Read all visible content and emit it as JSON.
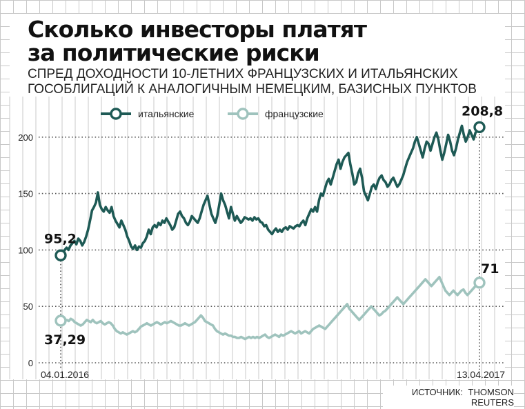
{
  "header": {
    "title_line1": "Сколько инвесторы платят",
    "title_line2": "за политические риски",
    "subtitle_line1": "СПРЕД ДОХОДНОСТИ 10-ЛЕТНИХ ФРАНЦУЗСКИХ И ИТАЛЬЯНСКИХ",
    "subtitle_line2": "ГОСОБЛИГАЦИЙ К АНАЛОГИЧНЫМ НЕМЕЦКИМ, БАЗИСНЫХ ПУНКТОВ"
  },
  "source": {
    "prefix": "ИСТОЧНИК:",
    "name": "THOMSON REUTERS"
  },
  "colors": {
    "italy": "#1e5a55",
    "france": "#9fc3bd",
    "grid": "#c8c8c8",
    "dotted": "#555555"
  },
  "chart_data": {
    "type": "line",
    "title": "Сколько инвесторы платят за политические риски",
    "subtitle": "СПРЕД ДОХОДНОСТИ 10-ЛЕТНИХ ФРАНЦУЗСКИХ И ИТАЛЬЯНСКИХ ГОСОБЛИГАЦИЙ К АНАЛОГИЧНЫМ НЕМЕЦКИМ, БАЗИСНЫХ ПУНКТОВ",
    "ylabel": "",
    "xlabel": "",
    "ylim": [
      0,
      225
    ],
    "yticks": [
      {
        "value": 0,
        "label": "0"
      },
      {
        "value": 50,
        "label": "50"
      },
      {
        "value": 100,
        "label": "100"
      },
      {
        "value": 150,
        "label": "150"
      },
      {
        "value": 200,
        "label": "200"
      }
    ],
    "x_start_label": "04.01.2016",
    "x_end_label": "13.04.2017",
    "grid": true,
    "legend_position": "top-left",
    "series": [
      {
        "name": "итальянские",
        "color": "#1e5a55",
        "start_label": "95,2",
        "end_label": "208,8",
        "values": [
          95.2,
          96,
          100,
          102,
          100,
          104,
          106,
          108,
          105,
          110,
          108,
          104,
          107,
          112,
          118,
          126,
          135,
          138,
          142,
          151,
          140,
          136,
          134,
          138,
          135,
          133,
          138,
          130,
          126,
          123,
          120,
          126,
          122,
          118,
          112,
          108,
          103,
          101,
          104,
          100,
          103,
          102,
          106,
          108,
          112,
          118,
          114,
          120,
          122,
          120,
          124,
          122,
          126,
          124,
          128,
          125,
          122,
          118,
          120,
          126,
          132,
          134,
          130,
          128,
          124,
          122,
          125,
          130,
          128,
          126,
          124,
          128,
          134,
          140,
          144,
          148,
          140,
          132,
          128,
          124,
          130,
          140,
          150,
          144,
          140,
          134,
          128,
          138,
          132,
          126,
          130,
          127,
          124,
          126,
          129,
          128,
          127,
          128,
          126,
          129,
          127,
          128,
          125,
          124,
          121,
          122,
          118,
          116,
          114,
          117,
          119,
          116,
          118,
          116,
          119,
          120,
          118,
          121,
          120,
          119,
          121,
          122,
          121,
          124,
          126,
          122,
          128,
          132,
          136,
          134,
          138,
          134,
          144,
          150,
          148,
          154,
          160,
          163,
          158,
          164,
          170,
          176,
          180,
          172,
          178,
          182,
          184,
          186,
          176,
          168,
          158,
          160,
          168,
          172,
          164,
          152,
          148,
          144,
          150,
          156,
          158,
          154,
          160,
          164,
          166,
          162,
          160,
          156,
          158,
          162,
          164,
          160,
          156,
          158,
          162,
          166,
          172,
          178,
          182,
          186,
          190,
          196,
          200,
          194,
          188,
          182,
          190,
          196,
          194,
          188,
          194,
          200,
          204,
          198,
          188,
          180,
          186,
          194,
          202,
          196,
          188,
          184,
          190,
          198,
          204,
          210,
          202,
          196,
          200,
          206,
          202,
          198,
          204,
          206,
          208.8
        ]
      },
      {
        "name": "французские",
        "color": "#9fc3bd",
        "start_label": "37,29",
        "end_label": "71",
        "values": [
          37.29,
          36,
          37,
          38,
          37,
          39,
          38,
          36,
          35,
          34,
          33,
          34,
          36,
          38,
          37,
          36,
          38,
          36,
          35,
          36,
          37,
          35,
          34,
          35,
          36,
          35,
          33,
          30,
          28,
          27,
          26,
          27,
          26,
          25,
          26,
          27,
          28,
          27,
          28,
          30,
          32,
          33,
          34,
          35,
          34,
          33,
          34,
          35,
          36,
          35,
          34,
          35,
          36,
          35,
          36,
          37,
          36,
          35,
          34,
          33,
          33,
          34,
          35,
          34,
          33,
          34,
          35,
          36,
          38,
          40,
          42,
          40,
          37,
          36,
          35,
          34,
          33,
          30,
          28,
          27,
          26,
          25,
          26,
          25,
          24,
          24,
          23,
          23,
          22,
          22,
          23,
          22,
          21,
          22,
          23,
          22,
          23,
          22,
          23,
          22,
          23,
          24,
          25,
          23,
          22,
          23,
          24,
          25,
          24,
          23,
          25,
          24,
          25,
          26,
          27,
          28,
          27,
          26,
          27,
          28,
          26,
          27,
          28,
          27,
          26,
          28,
          30,
          31,
          32,
          33,
          32,
          31,
          30,
          32,
          34,
          36,
          38,
          40,
          42,
          44,
          46,
          48,
          50,
          52,
          48,
          46,
          44,
          42,
          40,
          38,
          40,
          42,
          44,
          46,
          48,
          50,
          48,
          46,
          44,
          42,
          43,
          45,
          46,
          48,
          50,
          52,
          54,
          56,
          58,
          56,
          54,
          52,
          54,
          56,
          58,
          60,
          62,
          64,
          66,
          68,
          70,
          72,
          74,
          72,
          70,
          68,
          70,
          72,
          74,
          76,
          72,
          68,
          64,
          62,
          60,
          62,
          64,
          62,
          60,
          62,
          64,
          65,
          62,
          60,
          62,
          64,
          66,
          68,
          70,
          71
        ]
      }
    ]
  }
}
